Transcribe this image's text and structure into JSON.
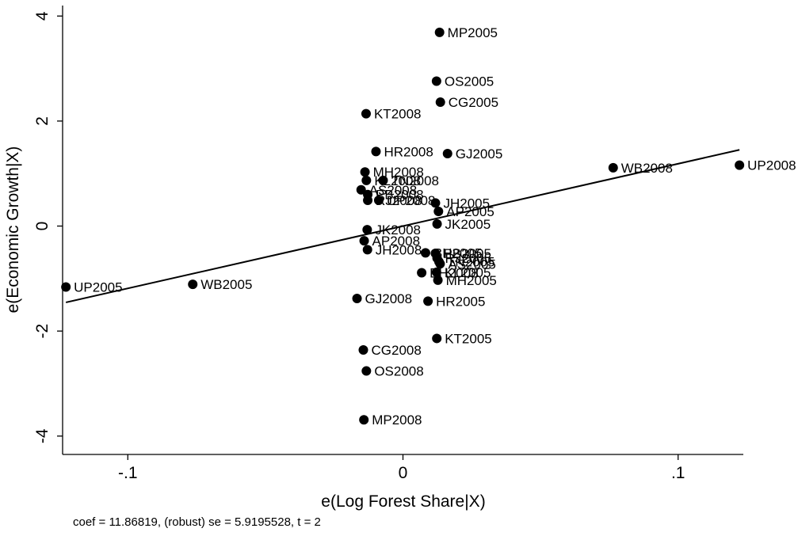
{
  "chart_data": {
    "type": "scatter",
    "title": "",
    "xlabel": "e(Log Forest Share|X)",
    "ylabel": "e(Economic Growth|X)",
    "xlim": [
      -0.1237,
      0.1237
    ],
    "ylim": [
      -4.35,
      4.2
    ],
    "x_ticks": [
      -0.1,
      0,
      0.1
    ],
    "x_tick_labels": [
      "-.1",
      "0",
      ".1"
    ],
    "y_ticks": [
      -4,
      -2,
      0,
      2,
      4
    ],
    "y_tick_labels": [
      "-4",
      "-2",
      "0",
      "2",
      "4"
    ],
    "grid": false,
    "fit_line": {
      "slope": 11.86819,
      "intercept": 0.0
    },
    "note": "coef = 11.86819, (robust) se = 5.9195528, t = 2",
    "points": [
      {
        "label": "MP2005",
        "x": 0.0133,
        "y": 3.69
      },
      {
        "label": "OS2005",
        "x": 0.0122,
        "y": 2.76
      },
      {
        "label": "CG2005",
        "x": 0.0136,
        "y": 2.36
      },
      {
        "label": "KT2008",
        "x": -0.0134,
        "y": 2.14
      },
      {
        "label": "HR2008",
        "x": -0.0098,
        "y": 1.42
      },
      {
        "label": "GJ2005",
        "x": 0.0162,
        "y": 1.38
      },
      {
        "label": "WB2008",
        "x": 0.0764,
        "y": 1.11
      },
      {
        "label": "UP2008",
        "x": 0.1223,
        "y": 1.16
      },
      {
        "label": "MH2008",
        "x": -0.0138,
        "y": 1.03
      },
      {
        "label": "KL2008",
        "x": -0.0133,
        "y": 0.87
      },
      {
        "label": "TN2008",
        "x": -0.0072,
        "y": 0.87
      },
      {
        "label": "AS2008",
        "x": -0.0152,
        "y": 0.69
      },
      {
        "label": "PB2008",
        "x": -0.0128,
        "y": 0.6
      },
      {
        "label": "RJ2008",
        "x": -0.0128,
        "y": 0.49
      },
      {
        "label": "UP2008",
        "x": -0.0088,
        "y": 0.49
      },
      {
        "label": "JH2005",
        "x": 0.0118,
        "y": 0.44
      },
      {
        "label": "AP2005",
        "x": 0.0129,
        "y": 0.28
      },
      {
        "label": "JK2005",
        "x": 0.0124,
        "y": 0.04
      },
      {
        "label": "JK2008",
        "x": -0.013,
        "y": -0.07
      },
      {
        "label": "AP2008",
        "x": -0.0141,
        "y": -0.28
      },
      {
        "label": "JH2008",
        "x": -0.0129,
        "y": -0.45
      },
      {
        "label": "BH2005",
        "x": 0.0082,
        "y": -0.51
      },
      {
        "label": "PB2005",
        "x": 0.0118,
        "y": -0.52
      },
      {
        "label": "RJ2005",
        "x": 0.0124,
        "y": -0.61
      },
      {
        "label": "TN2005",
        "x": 0.0131,
        "y": -0.68
      },
      {
        "label": "AS2005",
        "x": 0.0135,
        "y": -0.72
      },
      {
        "label": "BH2008",
        "x": 0.0068,
        "y": -0.89
      },
      {
        "label": "KL2005",
        "x": 0.0122,
        "y": -0.88
      },
      {
        "label": "MH2005",
        "x": 0.0127,
        "y": -1.03
      },
      {
        "label": "UP2005",
        "x": -0.1225,
        "y": -1.16
      },
      {
        "label": "WB2005",
        "x": -0.0764,
        "y": -1.11
      },
      {
        "label": "GJ2008",
        "x": -0.0167,
        "y": -1.38
      },
      {
        "label": "HR2005",
        "x": 0.0091,
        "y": -1.43
      },
      {
        "label": "KT2005",
        "x": 0.0123,
        "y": -2.14
      },
      {
        "label": "CG2008",
        "x": -0.0144,
        "y": -2.36
      },
      {
        "label": "OS2008",
        "x": -0.0133,
        "y": -2.76
      },
      {
        "label": "MP2008",
        "x": -0.0142,
        "y": -3.69
      }
    ]
  }
}
